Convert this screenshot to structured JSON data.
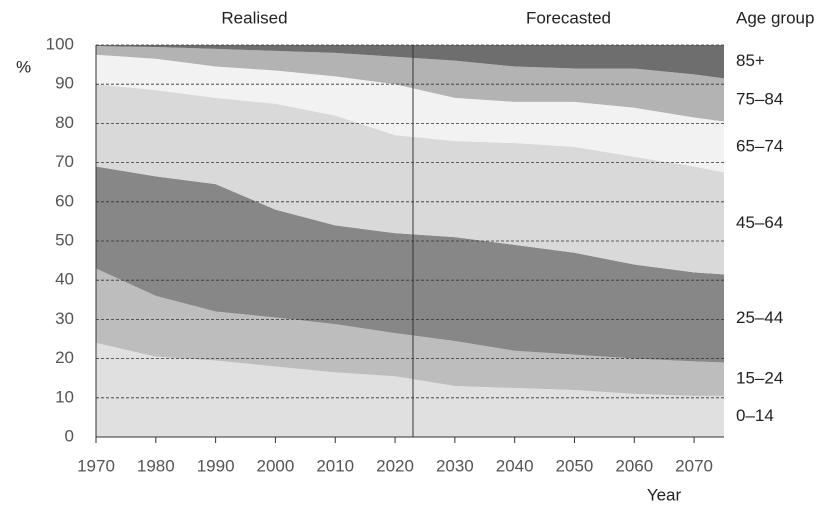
{
  "chart_data": {
    "type": "stacked_area",
    "y_label": "%",
    "x_label": "Year",
    "legend_title": "Age group",
    "annotations": [
      "Realised",
      "Forecasted"
    ],
    "divider_x": 2023,
    "x": [
      1970,
      1980,
      1990,
      2000,
      2010,
      2020,
      2030,
      2040,
      2050,
      2060,
      2070,
      2075
    ],
    "series": [
      {
        "name": "0–14",
        "color": "#e0e0e0",
        "values": [
          24,
          20.5,
          19.5,
          18,
          16.5,
          15.5,
          13,
          12.5,
          12,
          11,
          10.5,
          10.5
        ]
      },
      {
        "name": "15–24",
        "color": "#bdbdbd",
        "values": [
          19,
          15.5,
          12.5,
          12.5,
          12.3,
          11,
          11.5,
          9.5,
          9,
          9,
          8.8,
          8.5
        ]
      },
      {
        "name": "25–44",
        "color": "#878787",
        "values": [
          26,
          30.5,
          32.5,
          27.5,
          25.2,
          25.5,
          26.5,
          27,
          26,
          24,
          22.7,
          22.5
        ]
      },
      {
        "name": "45–64",
        "color": "#d9d9d9",
        "values": [
          21,
          22,
          22,
          27,
          28,
          25,
          24.5,
          26,
          27,
          27.5,
          27,
          26
        ]
      },
      {
        "name": "65–74",
        "color": "#f2f2f2",
        "values": [
          7.5,
          8,
          8,
          8.5,
          10,
          13,
          11,
          10.5,
          11.5,
          12.5,
          12.5,
          13
        ]
      },
      {
        "name": "75–84",
        "color": "#b3b3b3",
        "values": [
          2.2,
          3,
          4.5,
          5,
          6,
          7,
          9.5,
          9,
          8.5,
          10,
          11,
          11
        ]
      },
      {
        "name": "85+",
        "color": "#6e6e6e",
        "values": [
          0.3,
          0.5,
          1,
          1.5,
          2,
          3,
          4,
          5.5,
          6,
          6,
          7.5,
          8.5
        ]
      }
    ],
    "xlim": [
      1970,
      2075
    ],
    "ylim": [
      0,
      100
    ],
    "xticks": [
      1970,
      1980,
      1990,
      2000,
      2010,
      2020,
      2030,
      2040,
      2050,
      2060,
      2070
    ],
    "yticks": [
      0,
      10,
      20,
      30,
      40,
      50,
      60,
      70,
      80,
      90,
      100
    ],
    "grid": true
  }
}
